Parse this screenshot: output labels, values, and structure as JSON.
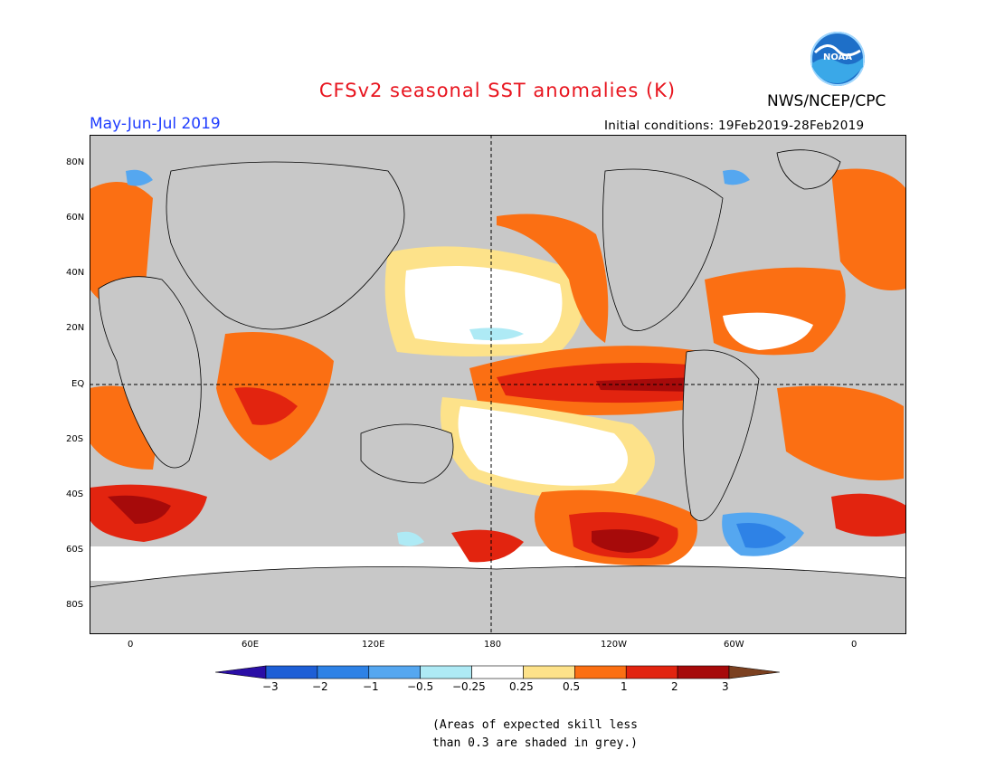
{
  "header": {
    "title": "CFSv2 seasonal SST anomalies (K)",
    "agency": "NWS/NCEP/CPC",
    "logo_text": "NOAA",
    "period": "May-Jun-Jul 2019",
    "initial_conditions": "Initial conditions: 19Feb2019-28Feb2019"
  },
  "axes": {
    "lat_labels": [
      "80N",
      "60N",
      "40N",
      "20N",
      "EQ",
      "20S",
      "40S",
      "60S",
      "80S"
    ],
    "lon_labels": [
      "0",
      "60E",
      "120E",
      "180",
      "120W",
      "60W",
      "0"
    ]
  },
  "colorbar": {
    "ticks": [
      "−3",
      "−2",
      "−1",
      "−0.5",
      "−0.25",
      "0.25",
      "0.5",
      "1",
      "2",
      "3"
    ],
    "colors": [
      "#2a0ea6",
      "#1e5fd6",
      "#2e82e6",
      "#55a7f0",
      "#aeeaf5",
      "#ffffff",
      "#fde28a",
      "#fb6f13",
      "#e2240f",
      "#a60a0a",
      "#7b4020"
    ]
  },
  "footnote": {
    "line1": "(Areas of expected skill less",
    "line2": "than 0.3 are shaded in grey.)"
  },
  "colors": {
    "title": "#e8141e",
    "period": "#1e3cff",
    "grey_mask": "#c8c8c8"
  }
}
